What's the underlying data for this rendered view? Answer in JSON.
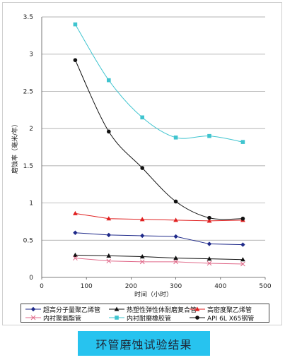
{
  "chart_data": {
    "type": "line",
    "title": "",
    "xlabel": "时间（小时）",
    "ylabel": "磨蚀率（毫米/年）",
    "xlim": [
      0,
      500
    ],
    "ylim": [
      0,
      3.5
    ],
    "x_ticks": [
      "0",
      "100",
      "200",
      "300",
      "400",
      "500"
    ],
    "y_ticks": [
      "0",
      "0.5",
      "1",
      "1.5",
      "2",
      "2.5",
      "3",
      "3.5"
    ],
    "grid": "horizontal",
    "legend_position": "bottom",
    "series": [
      {
        "name": "超高分子量聚乙烯管",
        "color": "#1f2a8a",
        "marker": "diamond",
        "smooth": false,
        "x": [
          75,
          150,
          225,
          300,
          375,
          450
        ],
        "y": [
          0.6,
          0.57,
          0.56,
          0.55,
          0.45,
          0.44
        ]
      },
      {
        "name": "热塑性弹性体耐磨复合管",
        "color": "#111111",
        "marker": "triangle",
        "smooth": false,
        "x": [
          75,
          150,
          225,
          300,
          375,
          450
        ],
        "y": [
          0.3,
          0.29,
          0.28,
          0.26,
          0.25,
          0.24
        ]
      },
      {
        "name": "高密度聚乙烯管",
        "color": "#e02020",
        "marker": "triangle",
        "smooth": false,
        "x": [
          75,
          150,
          225,
          300,
          375,
          450
        ],
        "y": [
          0.86,
          0.79,
          0.78,
          0.77,
          0.76,
          0.77
        ]
      },
      {
        "name": "内衬聚氨酯管",
        "color": "#e06a8a",
        "marker": "x",
        "smooth": false,
        "x": [
          75,
          150,
          225,
          300,
          375,
          450
        ],
        "y": [
          0.26,
          0.22,
          0.21,
          0.21,
          0.19,
          0.18
        ]
      },
      {
        "name": "内衬耐磨橡胶管",
        "color": "#3fc4cf",
        "marker": "square",
        "smooth": true,
        "x": [
          75,
          150,
          225,
          300,
          375,
          450
        ],
        "y": [
          3.4,
          2.65,
          2.15,
          1.88,
          1.9,
          1.82
        ]
      },
      {
        "name": "API 6L X65钢管",
        "color": "#111111",
        "marker": "circle",
        "smooth": true,
        "x": [
          75,
          150,
          225,
          300,
          375,
          450
        ],
        "y": [
          2.92,
          1.96,
          1.47,
          1.02,
          0.8,
          0.79
        ]
      }
    ]
  },
  "caption": "环管磨蚀试验结果"
}
